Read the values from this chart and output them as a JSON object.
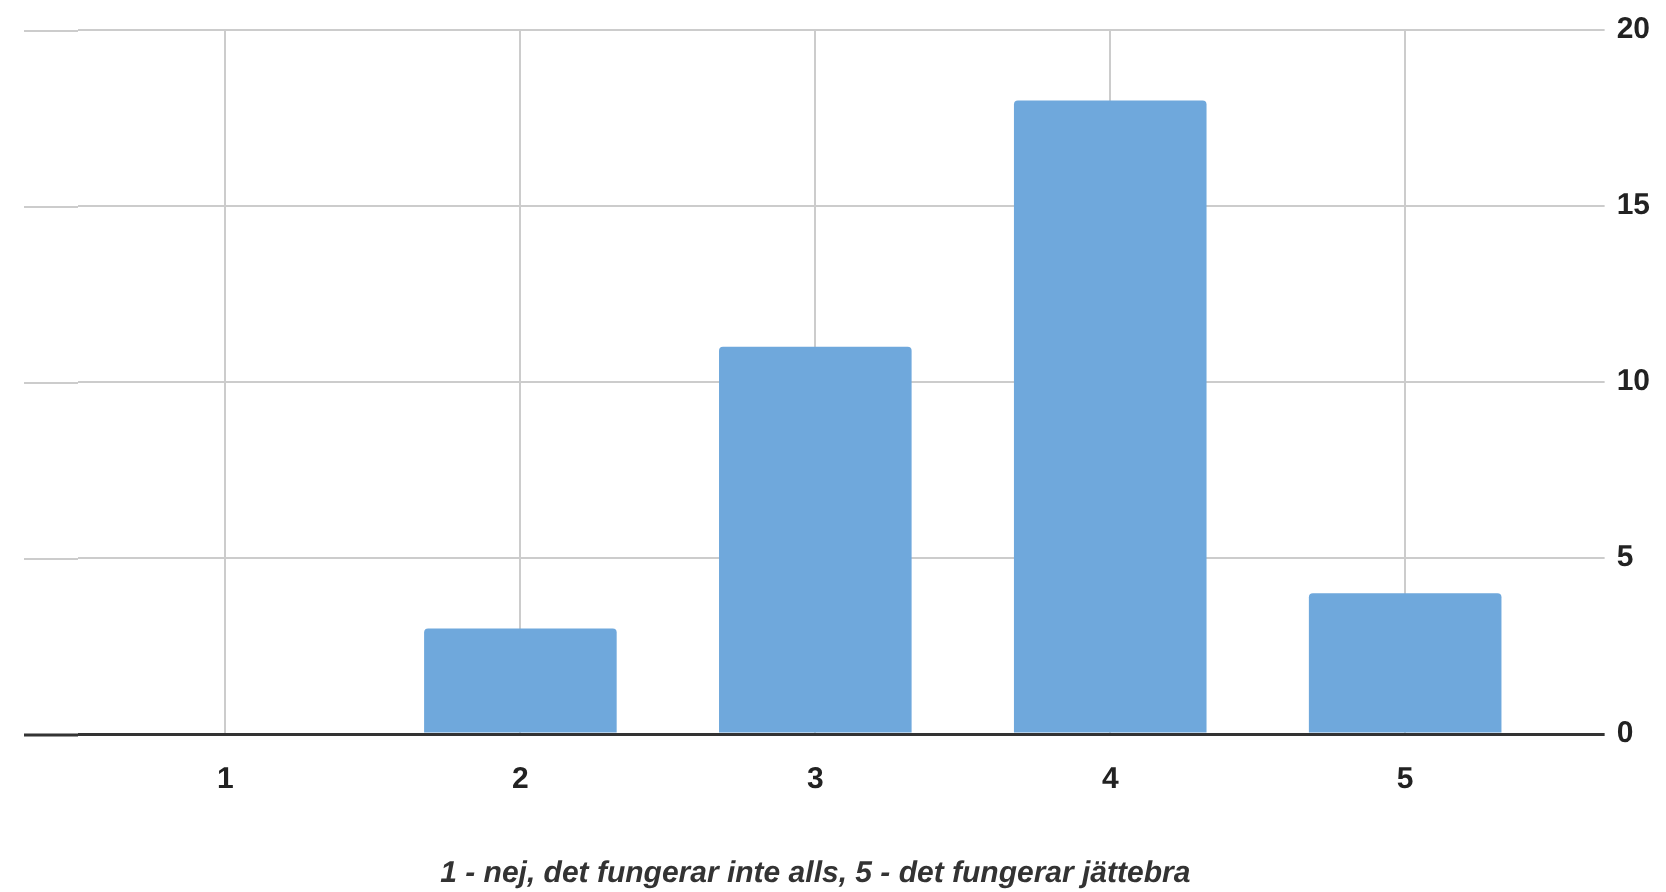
{
  "chart_data": {
    "type": "bar",
    "xlabel": "1 - nej, det fungerar inte alls, 5 - det fungerar jättebra",
    "categories": [
      "1",
      "2",
      "3",
      "4",
      "5"
    ],
    "values": [
      0,
      3,
      11,
      18,
      4
    ],
    "color": "#6fa8dc",
    "ylim": [
      0,
      20
    ],
    "yticks": [
      0,
      5,
      10,
      15,
      20
    ],
    "grid": true,
    "legend": false
  }
}
